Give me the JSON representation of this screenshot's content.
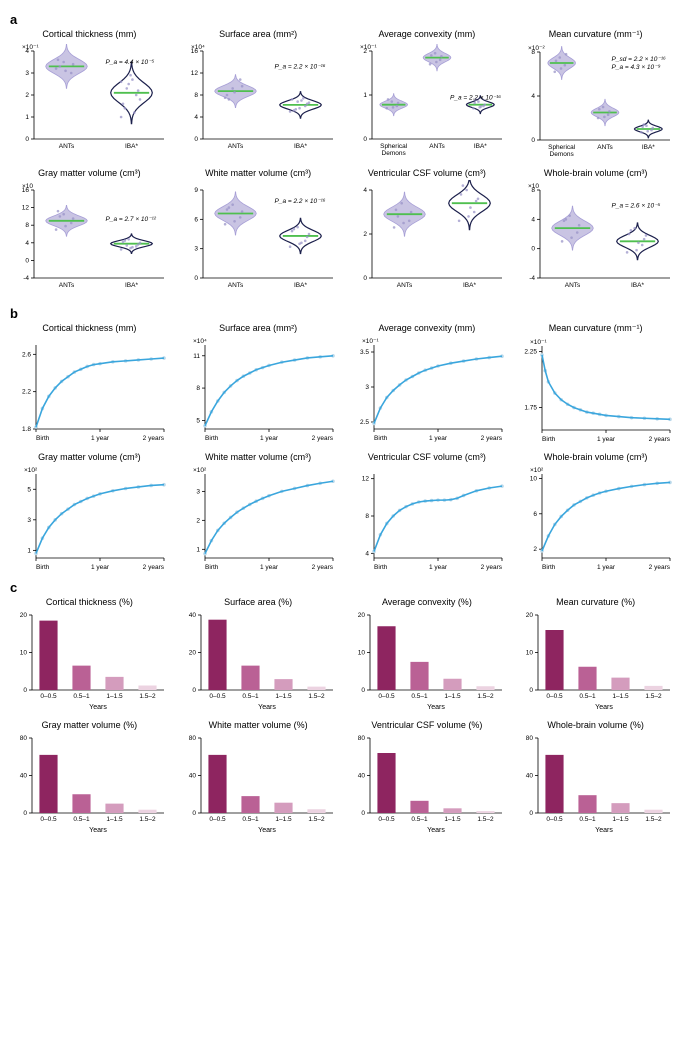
{
  "colors": {
    "violin_light": "#c9c4e3",
    "violin_dark": "#2b2f6b",
    "violin_stroke_light": "#a79fd6",
    "violin_stroke_dark": "#1b1f4b",
    "median_line": "#4fbf4f",
    "scatter_point": "#9a94c8",
    "curve": "#3aa6dd",
    "curve_point": "#b9d8ea",
    "bar_dark": "#8e2560",
    "bar_mid": "#ba6195",
    "bar_light": "#d49cbd",
    "bar_pale": "#ecd3e1",
    "axis": "#000000"
  },
  "panelA": [
    {
      "title": "Cortical thickness (mm)",
      "y_exp": "×10⁻¹",
      "y_ticks": [
        0,
        1,
        2,
        3,
        4
      ],
      "categories": [
        "ANTs",
        "IBA*"
      ],
      "medians": [
        3.3,
        2.1
      ],
      "spreads": [
        1.0,
        1.4
      ],
      "scatter": [
        [
          3.2,
          3.5,
          3.0,
          3.6,
          3.1,
          3.4,
          3.3
        ],
        [
          1.0,
          2.5,
          2.0,
          1.6,
          2.9,
          2.2,
          1.4,
          2.7,
          1.8,
          2.3,
          1.2,
          2.6
        ]
      ],
      "p_lines": [
        "P_a = 4.4 × 10⁻⁵"
      ],
      "p_x": 0.55,
      "p_y": 0.15
    },
    {
      "title": "Surface area (mm²)",
      "y_exp": "×10⁴",
      "y_ticks": [
        0,
        4,
        8,
        12,
        16
      ],
      "categories": [
        "ANTs",
        "IBA*"
      ],
      "medians": [
        8.7,
        6.2
      ],
      "spreads": [
        3.0,
        2.4
      ],
      "scatter": [
        [
          7.5,
          9.2,
          10.8,
          8.0,
          8.5,
          9.6,
          7.2
        ],
        [
          5.0,
          6.8,
          6.0,
          7.2,
          5.6,
          6.4,
          5.2,
          7.0,
          6.6,
          5.4,
          7.4
        ]
      ],
      "p_lines": [
        "P_a = 2.2 × 10⁻¹⁶"
      ],
      "p_x": 0.55,
      "p_y": 0.2
    },
    {
      "title": "Average convexity (mm)",
      "y_exp": "×10⁻¹",
      "y_ticks": [
        0,
        1,
        2
      ],
      "categories": [
        "Spherical\nDemons",
        "ANTs",
        "IBA*"
      ],
      "medians": [
        0.78,
        1.85,
        0.78
      ],
      "spreads": [
        0.25,
        0.3,
        0.2
      ],
      "scatter": [
        [
          0.7,
          0.85,
          0.75,
          0.9,
          0.72,
          0.82
        ],
        [
          1.7,
          1.95,
          1.8,
          1.9,
          1.75,
          1.88
        ],
        [
          0.7,
          0.85,
          0.75,
          0.82,
          0.72,
          0.78,
          0.9,
          0.74
        ]
      ],
      "p_lines": [
        "P_a = 2.2 × 10⁻¹⁶"
      ],
      "p_x": 0.6,
      "p_y": 0.55,
      "dark_idx": 2
    },
    {
      "title": "Mean curvature (mm⁻¹)",
      "y_exp": "×10⁻²",
      "y_ticks": [
        0,
        4,
        8
      ],
      "categories": [
        "Spherical\nDemons",
        "ANTs",
        "IBA*"
      ],
      "medians": [
        7.0,
        2.5,
        1.0
      ],
      "spreads": [
        1.5,
        1.2,
        0.8
      ],
      "scatter": [
        [
          6.2,
          7.5,
          6.8,
          7.2,
          6.5,
          7.8
        ],
        [
          2.0,
          3.0,
          2.3,
          2.8,
          2.1,
          2.6
        ],
        [
          0.7,
          1.3,
          0.9,
          1.2,
          0.8,
          1.1,
          1.4
        ]
      ],
      "p_lines": [
        "P_sd = 2.2 × 10⁻¹⁶",
        "P_a = 4.3 × 10⁻⁹"
      ],
      "p_x": 0.55,
      "p_y": 0.1,
      "dark_idx": 2
    },
    {
      "title": "Gray matter volume (cm³)",
      "y_exp": "×10",
      "y_ticks": [
        -4,
        0,
        4,
        8,
        12,
        16
      ],
      "categories": [
        "ANTs",
        "IBA*"
      ],
      "medians": [
        9.0,
        3.8
      ],
      "spreads": [
        3.5,
        2.2
      ],
      "scatter": [
        [
          7.0,
          10.5,
          8.5,
          11.2,
          7.8,
          9.5,
          10.0
        ],
        [
          2.5,
          4.8,
          3.2,
          4.2,
          2.8,
          3.6,
          4.5,
          3.0,
          4.0,
          3.4
        ]
      ],
      "p_lines": [
        "P_a = 2.7 × 10⁻¹²"
      ],
      "p_x": 0.55,
      "p_y": 0.35
    },
    {
      "title": "White matter volume (cm³)",
      "y_exp": "",
      "y_ticks": [
        0,
        3,
        6,
        9
      ],
      "categories": [
        "ANTs",
        "IBA*"
      ],
      "medians": [
        6.6,
        4.3
      ],
      "spreads": [
        2.2,
        1.8
      ],
      "scatter": [
        [
          5.5,
          7.5,
          6.2,
          7.0,
          5.8,
          6.8,
          7.2
        ],
        [
          3.2,
          5.2,
          3.8,
          4.8,
          3.5,
          4.2,
          5.0,
          3.6,
          4.5
        ]
      ],
      "p_lines": [
        "P_a = 2.2 × 10⁻¹⁶"
      ],
      "p_x": 0.55,
      "p_y": 0.15
    },
    {
      "title": "Ventricular CSF volume (cm³)",
      "y_exp": "",
      "y_ticks": [
        0,
        2,
        4
      ],
      "categories": [
        "ANTs",
        "IBA*"
      ],
      "medians": [
        2.9,
        3.4
      ],
      "spreads": [
        1.0,
        1.2
      ],
      "scatter": [
        [
          2.3,
          3.4,
          2.6,
          3.1,
          2.5,
          3.0,
          2.8
        ],
        [
          2.6,
          4.0,
          3.0,
          3.8,
          2.8,
          3.5,
          4.2,
          3.2,
          3.6
        ]
      ],
      "p_lines": [],
      "p_x": 0,
      "p_y": 0
    },
    {
      "title": "Whole-brain volume (cm³)",
      "y_exp": "×10",
      "y_ticks": [
        -4,
        0,
        4,
        8
      ],
      "categories": [
        "ANTs",
        "IBA*"
      ],
      "medians": [
        2.8,
        1.0
      ],
      "spreads": [
        3.0,
        2.5
      ],
      "scatter": [
        [
          1.0,
          4.5,
          2.2,
          3.8,
          1.5,
          3.2,
          4.0
        ],
        [
          -0.5,
          2.8,
          0.5,
          2.0,
          -0.2,
          1.3,
          2.5,
          0.8,
          1.8
        ]
      ],
      "p_lines": [
        "P_a = 2.6 × 10⁻⁵"
      ],
      "p_x": 0.55,
      "p_y": 0.2
    }
  ],
  "panelB": [
    {
      "title": "Cortical thickness (mm)",
      "y_exp": "",
      "y_ticks": [
        1.8,
        2.2,
        2.6
      ],
      "y_min": 1.8,
      "y_max": 2.7,
      "curve": [
        [
          0,
          1.82
        ],
        [
          0.1,
          2.02
        ],
        [
          0.2,
          2.15
        ],
        [
          0.3,
          2.24
        ],
        [
          0.4,
          2.31
        ],
        [
          0.5,
          2.36
        ],
        [
          0.6,
          2.41
        ],
        [
          0.7,
          2.44
        ],
        [
          0.8,
          2.47
        ],
        [
          0.9,
          2.49
        ],
        [
          1.0,
          2.5
        ],
        [
          1.2,
          2.52
        ],
        [
          1.4,
          2.53
        ],
        [
          1.6,
          2.54
        ],
        [
          1.8,
          2.55
        ],
        [
          2.0,
          2.56
        ]
      ]
    },
    {
      "title": "Surface area (mm²)",
      "y_exp": "×10⁴",
      "y_ticks": [
        5,
        8,
        11
      ],
      "y_min": 4.2,
      "y_max": 12,
      "curve": [
        [
          0,
          4.5
        ],
        [
          0.1,
          5.8
        ],
        [
          0.2,
          6.8
        ],
        [
          0.3,
          7.6
        ],
        [
          0.4,
          8.2
        ],
        [
          0.5,
          8.7
        ],
        [
          0.6,
          9.1
        ],
        [
          0.7,
          9.4
        ],
        [
          0.8,
          9.7
        ],
        [
          0.9,
          9.9
        ],
        [
          1.0,
          10.1
        ],
        [
          1.2,
          10.4
        ],
        [
          1.4,
          10.6
        ],
        [
          1.6,
          10.8
        ],
        [
          1.8,
          10.9
        ],
        [
          2.0,
          11.0
        ]
      ]
    },
    {
      "title": "Average convexity (mm)",
      "y_exp": "×10⁻¹",
      "y_ticks": [
        2.5,
        3,
        3.5
      ],
      "y_min": 2.4,
      "y_max": 3.6,
      "curve": [
        [
          0,
          2.48
        ],
        [
          0.1,
          2.7
        ],
        [
          0.2,
          2.85
        ],
        [
          0.3,
          2.95
        ],
        [
          0.4,
          3.03
        ],
        [
          0.5,
          3.1
        ],
        [
          0.6,
          3.15
        ],
        [
          0.7,
          3.2
        ],
        [
          0.8,
          3.24
        ],
        [
          0.9,
          3.27
        ],
        [
          1.0,
          3.3
        ],
        [
          1.2,
          3.34
        ],
        [
          1.4,
          3.37
        ],
        [
          1.6,
          3.4
        ],
        [
          1.8,
          3.42
        ],
        [
          2.0,
          3.44
        ]
      ]
    },
    {
      "title": "Mean curvature (mm⁻¹)",
      "y_exp": "×10⁻¹",
      "y_ticks": [
        1.75,
        2.25
      ],
      "y_min": 1.55,
      "y_max": 2.3,
      "curve": [
        [
          0,
          2.22
        ],
        [
          0.05,
          2.08
        ],
        [
          0.1,
          1.98
        ],
        [
          0.2,
          1.88
        ],
        [
          0.3,
          1.82
        ],
        [
          0.4,
          1.78
        ],
        [
          0.5,
          1.75
        ],
        [
          0.6,
          1.73
        ],
        [
          0.7,
          1.71
        ],
        [
          0.8,
          1.7
        ],
        [
          0.9,
          1.69
        ],
        [
          1.0,
          1.68
        ],
        [
          1.2,
          1.67
        ],
        [
          1.4,
          1.66
        ],
        [
          1.6,
          1.655
        ],
        [
          1.8,
          1.65
        ],
        [
          2.0,
          1.645
        ]
      ]
    },
    {
      "title": "Gray matter volume (cm³)",
      "y_exp": "×10²",
      "y_ticks": [
        1,
        3,
        5
      ],
      "y_min": 0.5,
      "y_max": 6,
      "curve": [
        [
          0,
          0.8
        ],
        [
          0.1,
          1.8
        ],
        [
          0.2,
          2.5
        ],
        [
          0.3,
          3.0
        ],
        [
          0.4,
          3.4
        ],
        [
          0.5,
          3.7
        ],
        [
          0.6,
          4.0
        ],
        [
          0.7,
          4.2
        ],
        [
          0.8,
          4.4
        ],
        [
          0.9,
          4.55
        ],
        [
          1.0,
          4.7
        ],
        [
          1.2,
          4.9
        ],
        [
          1.4,
          5.05
        ],
        [
          1.6,
          5.15
        ],
        [
          1.8,
          5.25
        ],
        [
          2.0,
          5.3
        ]
      ]
    },
    {
      "title": "White matter volume (cm³)",
      "y_exp": "×10²",
      "y_ticks": [
        1,
        2,
        3
      ],
      "y_min": 0.7,
      "y_max": 3.6,
      "curve": [
        [
          0,
          0.85
        ],
        [
          0.1,
          1.3
        ],
        [
          0.2,
          1.65
        ],
        [
          0.3,
          1.9
        ],
        [
          0.4,
          2.1
        ],
        [
          0.5,
          2.28
        ],
        [
          0.6,
          2.42
        ],
        [
          0.7,
          2.55
        ],
        [
          0.8,
          2.66
        ],
        [
          0.9,
          2.76
        ],
        [
          1.0,
          2.85
        ],
        [
          1.2,
          3.0
        ],
        [
          1.4,
          3.1
        ],
        [
          1.6,
          3.2
        ],
        [
          1.8,
          3.28
        ],
        [
          2.0,
          3.35
        ]
      ]
    },
    {
      "title": "Ventricular CSF volume (cm³)",
      "y_exp": "",
      "y_ticks": [
        4,
        8,
        12
      ],
      "y_min": 3.5,
      "y_max": 12.5,
      "curve": [
        [
          0,
          4.2
        ],
        [
          0.1,
          6.0
        ],
        [
          0.2,
          7.2
        ],
        [
          0.3,
          8.0
        ],
        [
          0.4,
          8.6
        ],
        [
          0.5,
          9.0
        ],
        [
          0.6,
          9.3
        ],
        [
          0.7,
          9.5
        ],
        [
          0.8,
          9.6
        ],
        [
          0.9,
          9.65
        ],
        [
          1.0,
          9.7
        ],
        [
          1.1,
          9.7
        ],
        [
          1.2,
          9.75
        ],
        [
          1.3,
          9.9
        ],
        [
          1.4,
          10.2
        ],
        [
          1.6,
          10.7
        ],
        [
          1.8,
          11.0
        ],
        [
          2.0,
          11.2
        ]
      ]
    },
    {
      "title": "Whole-brain volume (cm³)",
      "y_exp": "×10²",
      "y_ticks": [
        2,
        6,
        10
      ],
      "y_min": 1,
      "y_max": 10.5,
      "curve": [
        [
          0,
          1.8
        ],
        [
          0.1,
          3.5
        ],
        [
          0.2,
          4.8
        ],
        [
          0.3,
          5.7
        ],
        [
          0.4,
          6.4
        ],
        [
          0.5,
          7.0
        ],
        [
          0.6,
          7.4
        ],
        [
          0.7,
          7.8
        ],
        [
          0.8,
          8.1
        ],
        [
          0.9,
          8.35
        ],
        [
          1.0,
          8.55
        ],
        [
          1.2,
          8.85
        ],
        [
          1.4,
          9.1
        ],
        [
          1.6,
          9.3
        ],
        [
          1.8,
          9.45
        ],
        [
          2.0,
          9.55
        ]
      ]
    }
  ],
  "panelB_x": {
    "ticks": [
      0,
      1,
      2
    ],
    "labels": [
      "Birth",
      "1 year",
      "2 years"
    ]
  },
  "panelC": [
    {
      "title": "Cortical thickness (%)",
      "y_max": 20,
      "y_ticks": [
        0,
        10,
        20
      ],
      "vals": [
        18.5,
        6.5,
        3.5,
        1.2
      ]
    },
    {
      "title": "Surface area (%)",
      "y_max": 40,
      "y_ticks": [
        0,
        20,
        40
      ],
      "vals": [
        37.5,
        13.0,
        5.8,
        1.8
      ]
    },
    {
      "title": "Average convexity (%)",
      "y_max": 20,
      "y_ticks": [
        0,
        10,
        20
      ],
      "vals": [
        17.0,
        7.5,
        3.0,
        1.0
      ]
    },
    {
      "title": "Mean curvature (%)",
      "y_max": 20,
      "y_ticks": [
        0,
        10,
        20
      ],
      "vals": [
        16.0,
        6.2,
        3.3,
        1.1
      ]
    },
    {
      "title": "Gray matter volume (%)",
      "y_max": 80,
      "y_ticks": [
        0,
        40,
        80
      ],
      "vals": [
        62.0,
        20.0,
        10.0,
        3.5
      ]
    },
    {
      "title": "White matter volume (%)",
      "y_max": 80,
      "y_ticks": [
        0,
        40,
        80
      ],
      "vals": [
        62.0,
        18.0,
        11.0,
        4.0
      ]
    },
    {
      "title": "Ventricular CSF volume (%)",
      "y_max": 80,
      "y_ticks": [
        0,
        40,
        80
      ],
      "vals": [
        64.0,
        13.0,
        5.0,
        2.0
      ]
    },
    {
      "title": "Whole-brain volume (%)",
      "y_max": 80,
      "y_ticks": [
        0,
        40,
        80
      ],
      "vals": [
        62.0,
        19.0,
        10.5,
        3.5
      ]
    }
  ],
  "panelC_x": {
    "labels": [
      "0–0.5",
      "0.5–1",
      "1–1.5",
      "1.5–2"
    ],
    "axis_label": "Years"
  },
  "labels": {
    "a": "a",
    "b": "b",
    "c": "c"
  }
}
